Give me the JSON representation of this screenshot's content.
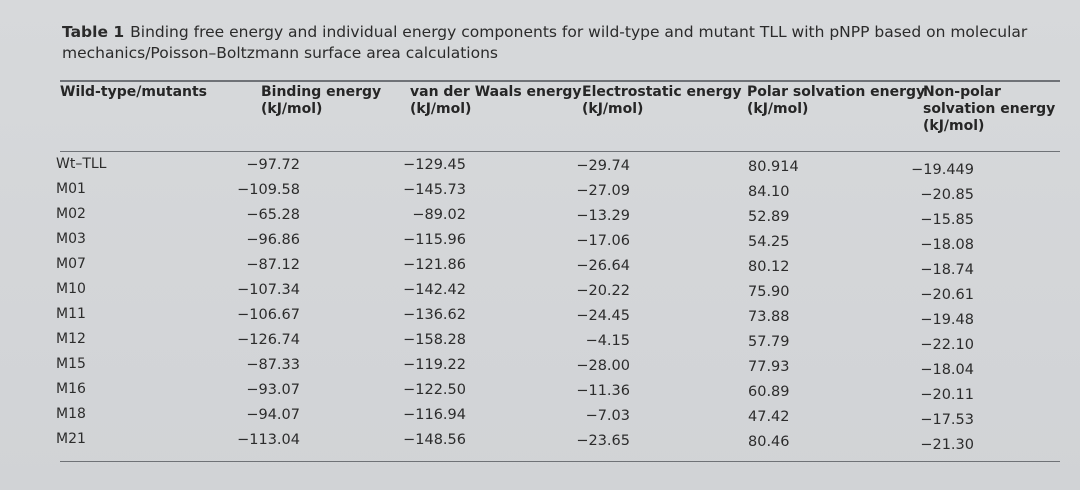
{
  "caption": {
    "label": "Table 1",
    "text": "Binding free energy and individual energy components for wild-type and mutant TLL with pNPP based on molecular mechanics/Poisson–Boltzmann surface area calculations"
  },
  "headers": [
    {
      "line1": "Wild-type/mutants",
      "line2": "",
      "line3": ""
    },
    {
      "line1": "Binding energy",
      "line2": "(kJ/mol)",
      "line3": ""
    },
    {
      "line1": "van der Waals energy",
      "line2": "(kJ/mol)",
      "line3": ""
    },
    {
      "line1": "Electrostatic energy",
      "line2": "(kJ/mol)",
      "line3": ""
    },
    {
      "line1": "Polar solvation energy",
      "line2": "(kJ/mol)",
      "line3": ""
    },
    {
      "line1": "Non-polar",
      "line2": "solvation energy",
      "line3": "(kJ/mol)"
    }
  ],
  "rows": [
    {
      "label": "Wt–TLL",
      "binding": "−97.72",
      "vdw": "−129.45",
      "elec": "−29.74",
      "polar": "80.914",
      "nonpolar": "−19.449"
    },
    {
      "label": "M01",
      "binding": "−109.58",
      "vdw": "−145.73",
      "elec": "−27.09",
      "polar": "84.10",
      "nonpolar": "−20.85"
    },
    {
      "label": "M02",
      "binding": "−65.28",
      "vdw": "−89.02",
      "elec": "−13.29",
      "polar": "52.89",
      "nonpolar": "−15.85"
    },
    {
      "label": "M03",
      "binding": "−96.86",
      "vdw": "−115.96",
      "elec": "−17.06",
      "polar": "54.25",
      "nonpolar": "−18.08"
    },
    {
      "label": "M07",
      "binding": "−87.12",
      "vdw": "−121.86",
      "elec": "−26.64",
      "polar": "80.12",
      "nonpolar": "−18.74"
    },
    {
      "label": "M10",
      "binding": "−107.34",
      "vdw": "−142.42",
      "elec": "−20.22",
      "polar": "75.90",
      "nonpolar": "−20.61"
    },
    {
      "label": "M11",
      "binding": "−106.67",
      "vdw": "−136.62",
      "elec": "−24.45",
      "polar": "73.88",
      "nonpolar": "−19.48"
    },
    {
      "label": "M12",
      "binding": "−126.74",
      "vdw": "−158.28",
      "elec": "−4.15",
      "polar": "57.79",
      "nonpolar": "−22.10"
    },
    {
      "label": "M15",
      "binding": "−87.33",
      "vdw": "−119.22",
      "elec": "−28.00",
      "polar": "77.93",
      "nonpolar": "−18.04"
    },
    {
      "label": "M16",
      "binding": "−93.07",
      "vdw": "−122.50",
      "elec": "−11.36",
      "polar": "60.89",
      "nonpolar": "−20.11"
    },
    {
      "label": "M18",
      "binding": "−94.07",
      "vdw": "−116.94",
      "elec": "−7.03",
      "polar": "47.42",
      "nonpolar": "−17.53"
    },
    {
      "label": "M21",
      "binding": "−113.04",
      "vdw": "−148.56",
      "elec": "−23.65",
      "polar": "80.46",
      "nonpolar": "−21.30"
    }
  ]
}
